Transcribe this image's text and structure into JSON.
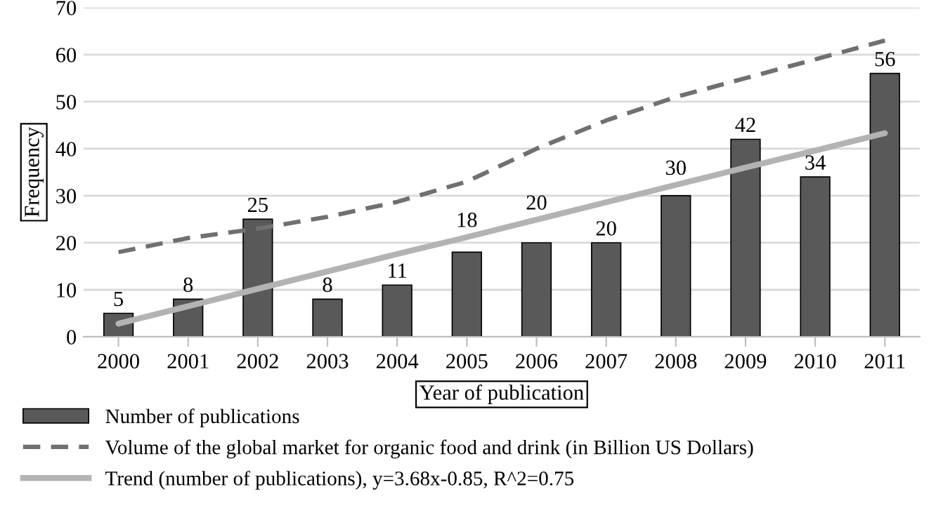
{
  "chart_data": {
    "type": "bar",
    "xlabel": "Year of publication",
    "ylabel": "Frequency",
    "categories": [
      "2000",
      "2001",
      "2002",
      "2003",
      "2004",
      "2005",
      "2006",
      "2007",
      "2008",
      "2009",
      "2010",
      "2011"
    ],
    "series": [
      {
        "name": "Number of publications",
        "color": "#595959",
        "values": [
          5,
          8,
          25,
          8,
          11,
          18,
          20,
          20,
          30,
          42,
          34,
          56
        ],
        "value_labels": [
          "5",
          "8",
          "25",
          "8",
          "11",
          "18",
          "20",
          "20",
          "30",
          "42",
          "34",
          "56"
        ]
      },
      {
        "name": "Volume of the global market for organic food and drink (in Billion US Dollars)",
        "type": "line",
        "line_style": "dashed",
        "color": "#707070",
        "values": [
          18,
          21,
          23,
          25.5,
          28.7,
          33,
          40,
          46,
          51,
          55,
          59,
          63
        ]
      },
      {
        "name": "Trend (number of publications), y=3.68x-0.85, R^2=0.75",
        "type": "line",
        "line_style": "solid",
        "color": "#b3b3b3",
        "values": [
          2.8,
          6.5,
          10.2,
          13.9,
          17.6,
          21.2,
          24.9,
          28.6,
          32.3,
          36,
          39.6,
          43.3
        ]
      }
    ],
    "ylim": [
      0,
      70
    ],
    "yticks": [
      0,
      10,
      20,
      30,
      40,
      50,
      60,
      70
    ],
    "grid": "y",
    "legend": "bottom"
  }
}
